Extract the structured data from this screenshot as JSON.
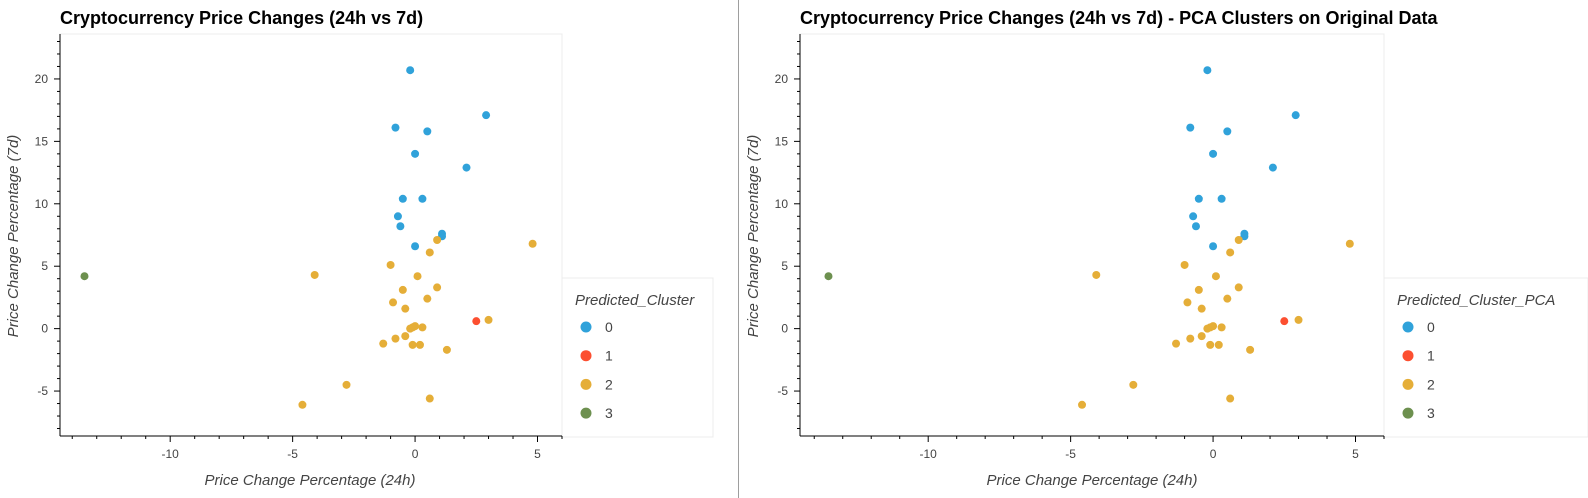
{
  "chart_data": [
    {
      "type": "scatter",
      "title": "Cryptocurrency Price Changes (24h vs 7d)",
      "xlabel": "Price Change Percentage (24h)",
      "ylabel": "Price Change Percentage (7d)",
      "xlim": [
        -14.5,
        6.0
      ],
      "ylim": [
        -8.6,
        23.6
      ],
      "xticks": [
        -10,
        -5,
        0,
        5
      ],
      "yticks": [
        -5,
        0,
        5,
        10,
        15,
        20
      ],
      "grid": false,
      "legend": {
        "title": "Predicted_Cluster",
        "placement": "right"
      },
      "series": [
        {
          "name": "0",
          "color": "#30a2da",
          "x": [
            -0.2,
            2.9,
            -0.8,
            0.5,
            0.0,
            2.1,
            -0.5,
            0.3,
            -0.7,
            -0.6,
            1.1,
            1.1,
            0.0
          ],
          "y": [
            20.7,
            17.1,
            16.1,
            15.8,
            14.0,
            12.9,
            10.4,
            10.4,
            9.0,
            8.2,
            7.6,
            7.4,
            6.6
          ]
        },
        {
          "name": "1",
          "color": "#fc4f30",
          "x": [
            2.5
          ],
          "y": [
            0.6
          ]
        },
        {
          "name": "2",
          "color": "#e5ae38",
          "x": [
            4.8,
            0.9,
            0.6,
            -4.1,
            -1.0,
            0.1,
            0.9,
            -0.5,
            0.5,
            -0.9,
            -0.4,
            3.0,
            -0.1,
            0.0,
            0.3,
            -0.2,
            -0.4,
            -0.8,
            -1.3,
            0.2,
            -0.1,
            1.3,
            -2.8,
            -4.6,
            0.6
          ],
          "y": [
            6.8,
            7.1,
            6.1,
            4.3,
            5.1,
            4.2,
            3.3,
            3.1,
            2.4,
            2.1,
            1.6,
            0.7,
            0.1,
            0.2,
            0.1,
            0.0,
            -0.6,
            -0.8,
            -1.2,
            -1.3,
            -1.3,
            -1.7,
            -4.5,
            -6.1,
            -5.6
          ]
        },
        {
          "name": "3",
          "color": "#6d904f",
          "x": [
            -13.5
          ],
          "y": [
            4.2
          ]
        }
      ]
    },
    {
      "type": "scatter",
      "title": "Cryptocurrency Price Changes (24h vs 7d) - PCA Clusters on Original Data",
      "xlabel": "Price Change Percentage (24h)",
      "ylabel": "Price Change Percentage (7d)",
      "xlim": [
        -14.5,
        6.0
      ],
      "ylim": [
        -8.6,
        23.6
      ],
      "xticks": [
        -10,
        -5,
        0,
        5
      ],
      "yticks": [
        -5,
        0,
        5,
        10,
        15,
        20
      ],
      "grid": false,
      "legend": {
        "title": "Predicted_Cluster_PCA",
        "placement": "right"
      },
      "series": [
        {
          "name": "0",
          "color": "#30a2da",
          "x": [
            -0.2,
            2.9,
            -0.8,
            0.5,
            0.0,
            2.1,
            -0.5,
            0.3,
            -0.7,
            -0.6,
            1.1,
            1.1,
            0.0
          ],
          "y": [
            20.7,
            17.1,
            16.1,
            15.8,
            14.0,
            12.9,
            10.4,
            10.4,
            9.0,
            8.2,
            7.6,
            7.4,
            6.6
          ]
        },
        {
          "name": "1",
          "color": "#fc4f30",
          "x": [
            2.5
          ],
          "y": [
            0.6
          ]
        },
        {
          "name": "2",
          "color": "#e5ae38",
          "x": [
            4.8,
            0.9,
            0.6,
            -4.1,
            -1.0,
            0.1,
            0.9,
            -0.5,
            0.5,
            -0.9,
            -0.4,
            3.0,
            -0.1,
            0.0,
            0.3,
            -0.2,
            -0.4,
            -0.8,
            -1.3,
            0.2,
            -0.1,
            1.3,
            -2.8,
            -4.6,
            0.6
          ],
          "y": [
            6.8,
            7.1,
            6.1,
            4.3,
            5.1,
            4.2,
            3.3,
            3.1,
            2.4,
            2.1,
            1.6,
            0.7,
            0.1,
            0.2,
            0.1,
            0.0,
            -0.6,
            -0.8,
            -1.2,
            -1.3,
            -1.3,
            -1.7,
            -4.5,
            -6.1,
            -5.6
          ]
        },
        {
          "name": "3",
          "color": "#6d904f",
          "x": [
            -13.5
          ],
          "y": [
            4.2
          ]
        }
      ]
    }
  ]
}
